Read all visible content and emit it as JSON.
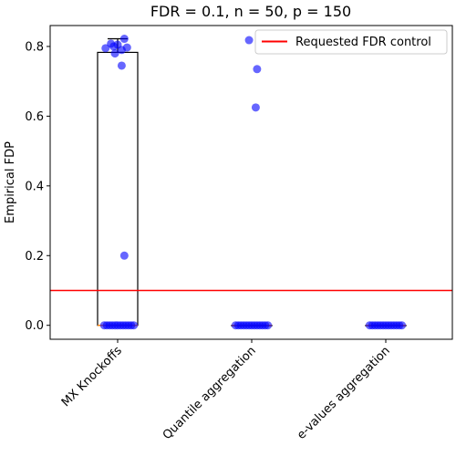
{
  "chart_data": {
    "type": "box",
    "title": "FDR = 0.1, n = 50, p = 150",
    "xlabel": "",
    "ylabel": "Empirical FDP",
    "ylim": [
      -0.04,
      0.86
    ],
    "yticks": [
      0.0,
      0.2,
      0.4,
      0.6,
      0.8
    ],
    "ytick_labels": [
      "0.0",
      "0.2",
      "0.4",
      "0.6",
      "0.8"
    ],
    "categories": [
      "MX Knockoffs",
      "Quantile aggregation",
      "e-values aggregation"
    ],
    "reference_line": {
      "y": 0.1,
      "label": "Requested FDR control",
      "color": "#ff0000"
    },
    "legend_position": "top-right",
    "point_color": "#0000ff",
    "box_color": "#000000",
    "median_color": "#ff7f0e",
    "boxes": [
      {
        "name": "MX Knockoffs",
        "q1": 0.0,
        "median": 0.0,
        "q3": 0.783,
        "whisker_low": 0.0,
        "whisker_high": 0.822,
        "points": [
          0.822,
          0.808,
          0.805,
          0.8,
          0.797,
          0.795,
          0.79,
          0.78,
          0.745,
          0.2,
          0.0,
          0.0,
          0.0,
          0.0,
          0.0,
          0.0,
          0.0,
          0.0,
          0.0,
          0.0,
          0.0,
          0.0
        ],
        "jitter": [
          0.05,
          -0.05,
          0.0,
          -0.03,
          0.07,
          -0.09,
          0.03,
          -0.02,
          0.03,
          0.05,
          -0.1,
          -0.08,
          -0.06,
          -0.04,
          -0.02,
          0.0,
          0.02,
          0.04,
          0.06,
          0.08,
          0.1,
          0.12
        ]
      },
      {
        "name": "Quantile aggregation",
        "q1": 0.0,
        "median": 0.0,
        "q3": 0.0,
        "whisker_low": 0.0,
        "whisker_high": 0.0,
        "points": [
          0.818,
          0.735,
          0.625,
          0.0,
          0.0,
          0.0,
          0.0,
          0.0,
          0.0,
          0.0,
          0.0,
          0.0,
          0.0,
          0.0,
          0.0,
          0.0
        ],
        "jitter": [
          -0.02,
          0.04,
          0.03,
          -0.12,
          -0.1,
          -0.08,
          -0.06,
          -0.04,
          -0.02,
          0.0,
          0.02,
          0.04,
          0.06,
          0.08,
          0.1,
          0.12
        ]
      },
      {
        "name": "e-values aggregation",
        "q1": 0.0,
        "median": 0.0,
        "q3": 0.0,
        "whisker_low": 0.0,
        "whisker_high": 0.0,
        "points": [
          0.0,
          0.0,
          0.0,
          0.0,
          0.0,
          0.0,
          0.0,
          0.0,
          0.0,
          0.0,
          0.0,
          0.0,
          0.0
        ],
        "jitter": [
          -0.12,
          -0.1,
          -0.08,
          -0.06,
          -0.04,
          -0.02,
          0.0,
          0.02,
          0.04,
          0.06,
          0.08,
          0.1,
          0.12
        ]
      }
    ]
  }
}
